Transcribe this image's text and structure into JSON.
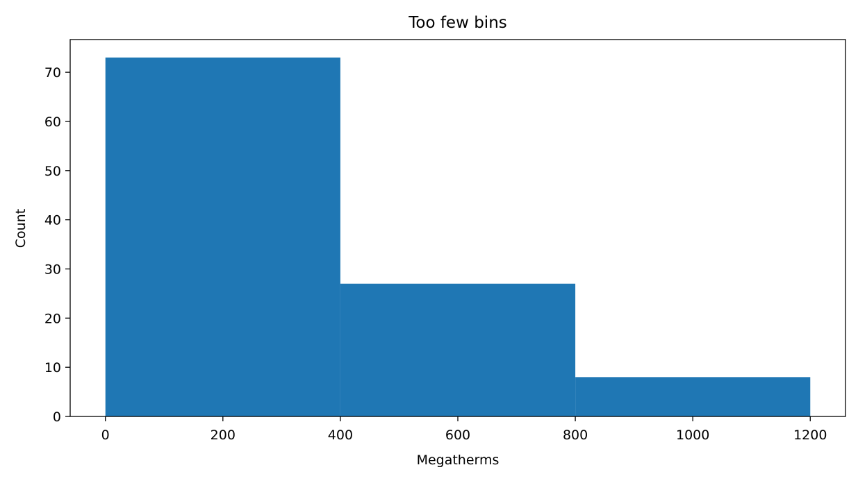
{
  "chart_data": {
    "type": "bar",
    "title": "Too few bins",
    "xlabel": "Megatherms",
    "ylabel": "Count",
    "bins": [
      {
        "x0": 0,
        "x1": 400,
        "value": 73
      },
      {
        "x0": 400,
        "x1": 800,
        "value": 27
      },
      {
        "x0": 800,
        "x1": 1200,
        "value": 8
      }
    ],
    "xlim": [
      -60,
      1260
    ],
    "ylim": [
      0,
      76.65
    ],
    "xticks": [
      0,
      200,
      400,
      600,
      800,
      1000,
      1200
    ],
    "yticks": [
      0,
      10,
      20,
      30,
      40,
      50,
      60,
      70
    ],
    "bar_color": "#1f77b4",
    "grid": false,
    "legend": "none"
  }
}
